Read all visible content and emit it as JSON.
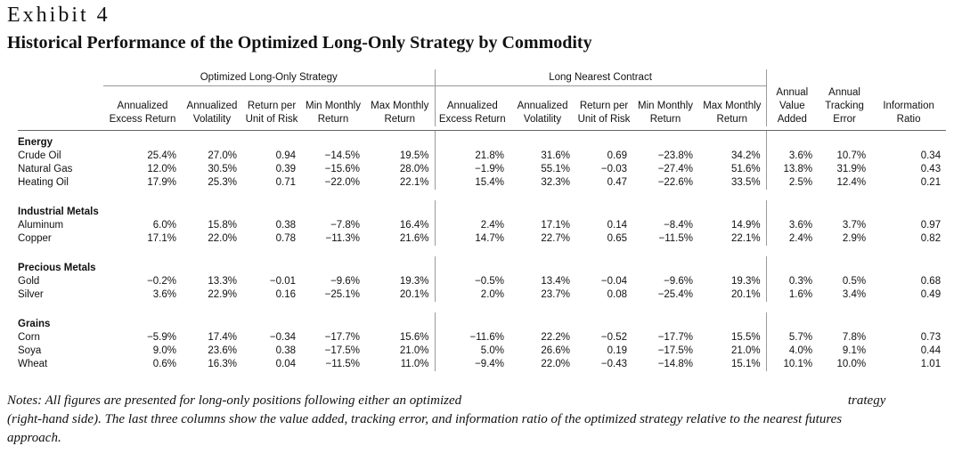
{
  "exhibit_label": "Exhibit 4",
  "title": "Historical Performance of the Optimized Long-Only Strategy by Commodity",
  "groups": {
    "optimized": "Optimized Long-Only Strategy",
    "nearest": "Long Nearest Contract"
  },
  "headers": {
    "opt": [
      [
        "Annualized",
        "Excess Return"
      ],
      [
        "Annualized",
        "Volatility"
      ],
      [
        "Return per",
        "Unit of Risk"
      ],
      [
        "Min Monthly",
        "Return"
      ],
      [
        "Max Monthly",
        "Return"
      ]
    ],
    "near": [
      [
        "Annualized",
        "Excess Return"
      ],
      [
        "Annualized",
        "Volatility"
      ],
      [
        "Return per",
        "Unit of Risk"
      ],
      [
        "Min Monthly",
        "Return"
      ],
      [
        "Max Monthly",
        "Return"
      ]
    ],
    "comp": [
      [
        "Annual",
        "Value",
        "Added"
      ],
      [
        "Annual",
        "Tracking",
        "Error"
      ],
      [
        "",
        "Information",
        "Ratio"
      ]
    ]
  },
  "sections": [
    {
      "name": "Energy",
      "rows": [
        {
          "name": "Crude Oil",
          "values": [
            "25.4%",
            "27.0%",
            "0.94",
            "−14.5%",
            "19.5%",
            "21.8%",
            "31.6%",
            "0.69",
            "−23.8%",
            "34.2%",
            "3.6%",
            "10.7%",
            "0.34"
          ]
        },
        {
          "name": "Natural Gas",
          "values": [
            "12.0%",
            "30.5%",
            "0.39",
            "−15.6%",
            "28.0%",
            "−1.9%",
            "55.1%",
            "−0.03",
            "−27.4%",
            "51.6%",
            "13.8%",
            "31.9%",
            "0.43"
          ]
        },
        {
          "name": "Heating Oil",
          "values": [
            "17.9%",
            "25.3%",
            "0.71",
            "−22.0%",
            "22.1%",
            "15.4%",
            "32.3%",
            "0.47",
            "−22.6%",
            "33.5%",
            "2.5%",
            "12.4%",
            "0.21"
          ]
        }
      ]
    },
    {
      "name": "Industrial Metals",
      "rows": [
        {
          "name": "Aluminum",
          "values": [
            "6.0%",
            "15.8%",
            "0.38",
            "−7.8%",
            "16.4%",
            "2.4%",
            "17.1%",
            "0.14",
            "−8.4%",
            "14.9%",
            "3.6%",
            "3.7%",
            "0.97"
          ]
        },
        {
          "name": "Copper",
          "values": [
            "17.1%",
            "22.0%",
            "0.78",
            "−11.3%",
            "21.6%",
            "14.7%",
            "22.7%",
            "0.65",
            "−11.5%",
            "22.1%",
            "2.4%",
            "2.9%",
            "0.82"
          ]
        }
      ]
    },
    {
      "name": "Precious Metals",
      "rows": [
        {
          "name": "Gold",
          "values": [
            "−0.2%",
            "13.3%",
            "−0.01",
            "−9.6%",
            "19.3%",
            "−0.5%",
            "13.4%",
            "−0.04",
            "−9.6%",
            "19.3%",
            "0.3%",
            "0.5%",
            "0.68"
          ]
        },
        {
          "name": "Silver",
          "values": [
            "3.6%",
            "22.9%",
            "0.16",
            "−25.1%",
            "20.1%",
            "2.0%",
            "23.7%",
            "0.08",
            "−25.4%",
            "20.1%",
            "1.6%",
            "3.4%",
            "0.49"
          ]
        }
      ]
    },
    {
      "name": "Grains",
      "rows": [
        {
          "name": "Corn",
          "values": [
            "−5.9%",
            "17.4%",
            "−0.34",
            "−17.7%",
            "15.6%",
            "−11.6%",
            "22.2%",
            "−0.52",
            "−17.7%",
            "15.5%",
            "5.7%",
            "7.8%",
            "0.73"
          ]
        },
        {
          "name": "Soya",
          "values": [
            "9.0%",
            "23.6%",
            "0.38",
            "−17.5%",
            "21.0%",
            "5.0%",
            "26.6%",
            "0.19",
            "−17.5%",
            "21.0%",
            "4.0%",
            "9.1%",
            "0.44"
          ]
        },
        {
          "name": "Wheat",
          "values": [
            "0.6%",
            "16.3%",
            "0.04",
            "−11.5%",
            "11.0%",
            "−9.4%",
            "22.0%",
            "−0.43",
            "−14.8%",
            "15.1%",
            "10.1%",
            "10.0%",
            "1.01"
          ]
        }
      ]
    }
  ],
  "notes": {
    "line1": "Notes: All figures are presented for long-only positions following either an optimized",
    "line1_tail": "trategy",
    "line2": "(right-hand side). The last three columns show the value added, tracking error, and information ratio of the optimized strategy relative to the nearest futures",
    "line3": "approach."
  }
}
